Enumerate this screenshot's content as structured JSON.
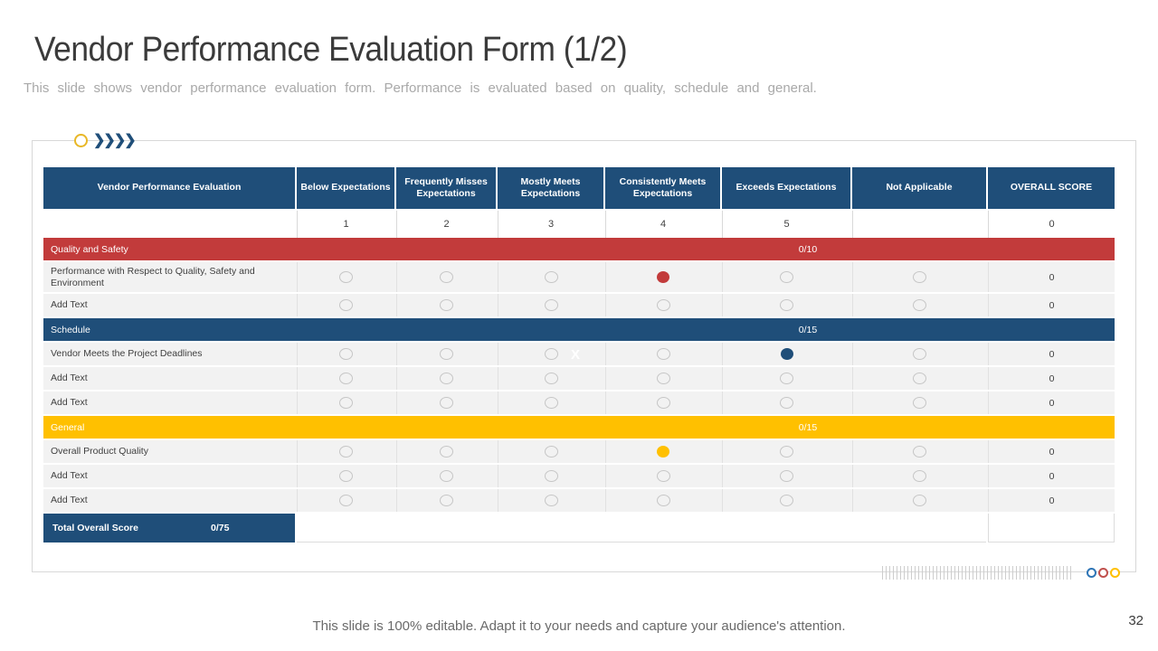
{
  "slide": {
    "title": "Vendor Performance Evaluation Form (1/2)",
    "subtitle": "This slide shows vendor performance evaluation form. Performance is evaluated based on quality, schedule and general.",
    "footer": "This slide is 100% editable. Adapt it to your needs and capture your audience's attention.",
    "page_number": "32",
    "watermark_x": "X"
  },
  "colors": {
    "header_blue": "#1f4e79",
    "section_red": "#c23b3b",
    "section_blue": "#1f4e79",
    "section_yellow": "#ffc000",
    "row_background": "#f2f2f2",
    "deco_dot_blue": "#2e75b6",
    "deco_dot_red": "#c0504d",
    "deco_dot_yellow": "#ffc000"
  },
  "table": {
    "columns": [
      "Vendor Performance Evaluation",
      "Below Expectations",
      "Frequently Misses Expectations",
      "Mostly Meets Expectations",
      "Consistently Meets Expectations",
      "Exceeds Expectations",
      "Not Applicable",
      "OVERALL SCORE"
    ],
    "points_row": [
      "",
      "1",
      "2",
      "3",
      "4",
      "5",
      "",
      "0"
    ],
    "sections": [
      {
        "label": "Quality and Safety",
        "score": "0/10",
        "color": "#c23b3b",
        "rows": [
          {
            "label": "Performance with Respect to Quality, Safety and Environment",
            "selected": 4,
            "selected_color": "#c23b3b",
            "overall": "0"
          },
          {
            "label": "Add Text",
            "selected": null,
            "overall": "0"
          }
        ]
      },
      {
        "label": "Schedule",
        "score": "0/15",
        "color": "#1f4e79",
        "rows": [
          {
            "label": "Vendor Meets the Project Deadlines",
            "selected": 5,
            "selected_color": "#1f4e79",
            "overall": "0"
          },
          {
            "label": "Add Text",
            "selected": null,
            "overall": "0"
          },
          {
            "label": "Add Text",
            "selected": null,
            "overall": "0"
          }
        ]
      },
      {
        "label": "General",
        "score": "0/15",
        "color": "#ffc000",
        "rows": [
          {
            "label": "Overall Product Quality",
            "selected": 4,
            "selected_color": "#ffc000",
            "overall": "0"
          },
          {
            "label": "Add Text",
            "selected": null,
            "overall": "0"
          },
          {
            "label": "Add Text",
            "selected": null,
            "overall": "0"
          }
        ]
      }
    ],
    "total_label": "Total Overall Score",
    "total_score": "0/75",
    "chevrons_glyph": "❯❯❯❯"
  }
}
